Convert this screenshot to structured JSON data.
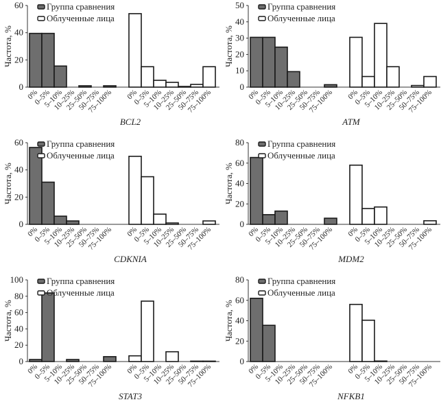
{
  "colors": {
    "comparison": "#6e6e6e",
    "irradiated": "#ffffff",
    "stroke": "#1a1a1a"
  },
  "chart_data": [
    {
      "type": "bar",
      "title": "BCL2",
      "ylabel": "Частота, %",
      "ylim": [
        0,
        60
      ],
      "yticks": [
        0,
        20,
        40,
        60
      ],
      "categories": [
        "0%",
        "0–5%",
        "5–10%",
        "10–25%",
        "25–50%",
        "50–75%",
        "75–100%"
      ],
      "series": [
        {
          "name": "Группа сравнения",
          "values": [
            39.5,
            39.5,
            15.5,
            0,
            1,
            0,
            1
          ]
        },
        {
          "name": "Облученные лица",
          "values": [
            54,
            15,
            5,
            3.5,
            0.5,
            2,
            15
          ]
        }
      ],
      "legend": "top-left"
    },
    {
      "type": "bar",
      "title": "ATM",
      "ylabel": "Частота, %",
      "ylim": [
        0,
        50
      ],
      "yticks": [
        0,
        10,
        20,
        30,
        40,
        50
      ],
      "categories": [
        "0%",
        "0–5%",
        "5–10%",
        "10–25%",
        "25–50%",
        "50–75%",
        "75–100%"
      ],
      "series": [
        {
          "name": "Группа сравнения",
          "values": [
            30.5,
            30.5,
            24.5,
            9.5,
            0,
            0,
            1.5
          ]
        },
        {
          "name": "Облученные лица",
          "values": [
            30.5,
            6.5,
            39,
            12.5,
            0,
            1,
            6.5
          ]
        }
      ],
      "legend": "top-left"
    },
    {
      "type": "bar",
      "title": "CDKNIA",
      "ylabel": "Частота, %",
      "ylim": [
        0,
        60
      ],
      "yticks": [
        0,
        20,
        40,
        60
      ],
      "categories": [
        "0%",
        "0–5%",
        "5–10%",
        "10–25%",
        "25–50%",
        "50–75%",
        "75–100%"
      ],
      "series": [
        {
          "name": "Группа сравнения",
          "values": [
            56.5,
            31,
            6,
            2.5,
            0,
            0,
            0
          ]
        },
        {
          "name": "Облученные лица",
          "values": [
            50,
            35,
            7.5,
            1,
            0,
            0,
            2.5
          ]
        }
      ],
      "legend": "top-left"
    },
    {
      "type": "bar",
      "title": "MDM2",
      "ylabel": "Частота, %",
      "ylim": [
        0,
        80
      ],
      "yticks": [
        0,
        20,
        40,
        60,
        80
      ],
      "categories": [
        "0%",
        "0–5%",
        "5–10%",
        "10–25%",
        "25–50%",
        "50–75%",
        "75–100%"
      ],
      "series": [
        {
          "name": "Группа сравнения",
          "values": [
            65.5,
            9.5,
            13,
            0,
            0,
            0,
            6
          ]
        },
        {
          "name": "Облученные лица",
          "values": [
            58,
            15.5,
            17,
            0,
            0,
            0,
            3.5
          ]
        }
      ],
      "legend": "top-left"
    },
    {
      "type": "bar",
      "title": "STAT3",
      "ylabel": "Частота, %",
      "ylim": [
        0,
        100
      ],
      "yticks": [
        0,
        20,
        40,
        60,
        80,
        100
      ],
      "categories": [
        "0%",
        "0–5%",
        "5–10%",
        "10–25%",
        "25–50%",
        "50–75%",
        "75–100%"
      ],
      "series": [
        {
          "name": "Группа сравнения",
          "values": [
            2.5,
            84,
            0,
            2.5,
            0,
            0,
            6
          ]
        },
        {
          "name": "Облученные лица",
          "values": [
            7,
            74,
            0,
            12,
            0,
            0.5,
            0.5
          ]
        }
      ],
      "legend": "top-left"
    },
    {
      "type": "bar",
      "title": "NFKB1",
      "ylabel": "Частота, %",
      "ylim": [
        0,
        80
      ],
      "yticks": [
        0,
        20,
        40,
        60,
        80
      ],
      "categories": [
        "0%",
        "0–5%",
        "5–10%",
        "10–25%",
        "25–50%",
        "50–75%",
        "75–100%"
      ],
      "series": [
        {
          "name": "Группа сравнения",
          "values": [
            62,
            35.5,
            0,
            0,
            0,
            0,
            0
          ]
        },
        {
          "name": "Облученные лица",
          "values": [
            56,
            40.5,
            0.5,
            0,
            0,
            0,
            0
          ]
        }
      ],
      "legend": "top-left"
    }
  ]
}
